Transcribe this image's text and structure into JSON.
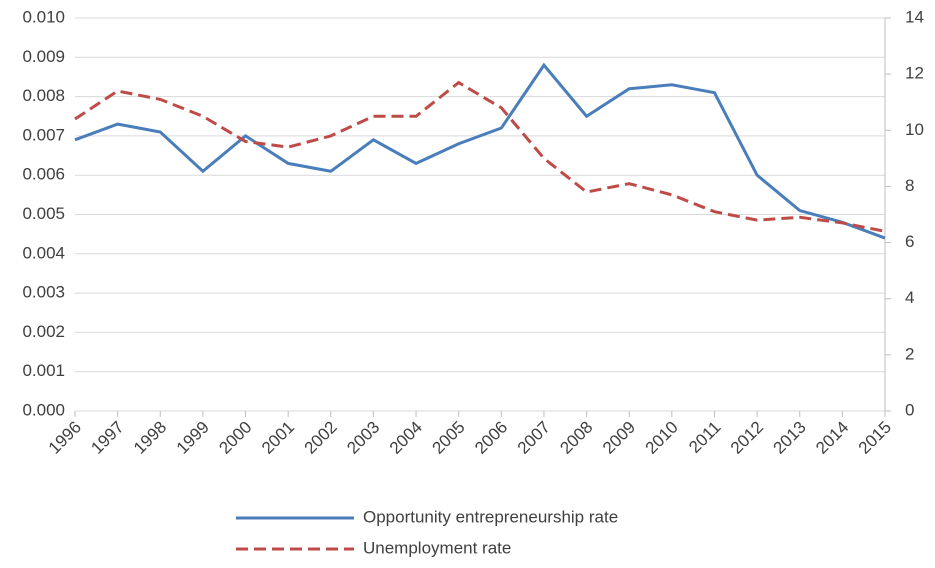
{
  "chart_data": {
    "type": "line",
    "categories": [
      "1996",
      "1997",
      "1998",
      "1999",
      "2000",
      "2001",
      "2002",
      "2003",
      "2004",
      "2005",
      "2006",
      "2007",
      "2008",
      "2009",
      "2010",
      "2011",
      "2012",
      "2013",
      "2014",
      "2015"
    ],
    "series": [
      {
        "name": "Opportunity entrepreneurship rate",
        "color": "#4a7ebb",
        "dash": false,
        "values": [
          0.0069,
          0.0073,
          0.0071,
          0.0061,
          0.007,
          0.0063,
          0.0061,
          0.0069,
          0.0063,
          0.0068,
          0.0072,
          0.0088,
          0.0075,
          0.0082,
          0.0083,
          0.0081,
          0.006,
          0.0051,
          0.0048,
          0.0044
        ]
      },
      {
        "name": "Unemployment rate",
        "color": "#be4b48",
        "dash": true,
        "axis": "y2",
        "values": [
          10.4,
          11.4,
          11.1,
          10.5,
          9.6,
          9.4,
          9.8,
          10.5,
          10.5,
          11.7,
          10.8,
          9.0,
          7.8,
          8.1,
          7.7,
          7.1,
          6.8,
          6.9,
          6.7,
          6.4
        ]
      }
    ],
    "ylim": [
      0,
      0.01
    ],
    "yticks": [
      {
        "value": 0,
        "label": "0.000"
      },
      {
        "value": 0.001,
        "label": "0.001"
      },
      {
        "value": 0.002,
        "label": "0.002"
      },
      {
        "value": 0.003,
        "label": "0.003"
      },
      {
        "value": 0.004,
        "label": "0.004"
      },
      {
        "value": 0.005,
        "label": "0.005"
      },
      {
        "value": 0.006,
        "label": "0.006"
      },
      {
        "value": 0.007,
        "label": "0.007"
      },
      {
        "value": 0.008,
        "label": "0.008"
      },
      {
        "value": 0.009,
        "label": "0.009"
      },
      {
        "value": 0.01,
        "label": "0.010"
      }
    ],
    "y2lim": [
      0,
      14
    ],
    "y2ticks": [
      0,
      2,
      4,
      6,
      8,
      10,
      12,
      14
    ],
    "grid": true,
    "legend": "bottom"
  }
}
